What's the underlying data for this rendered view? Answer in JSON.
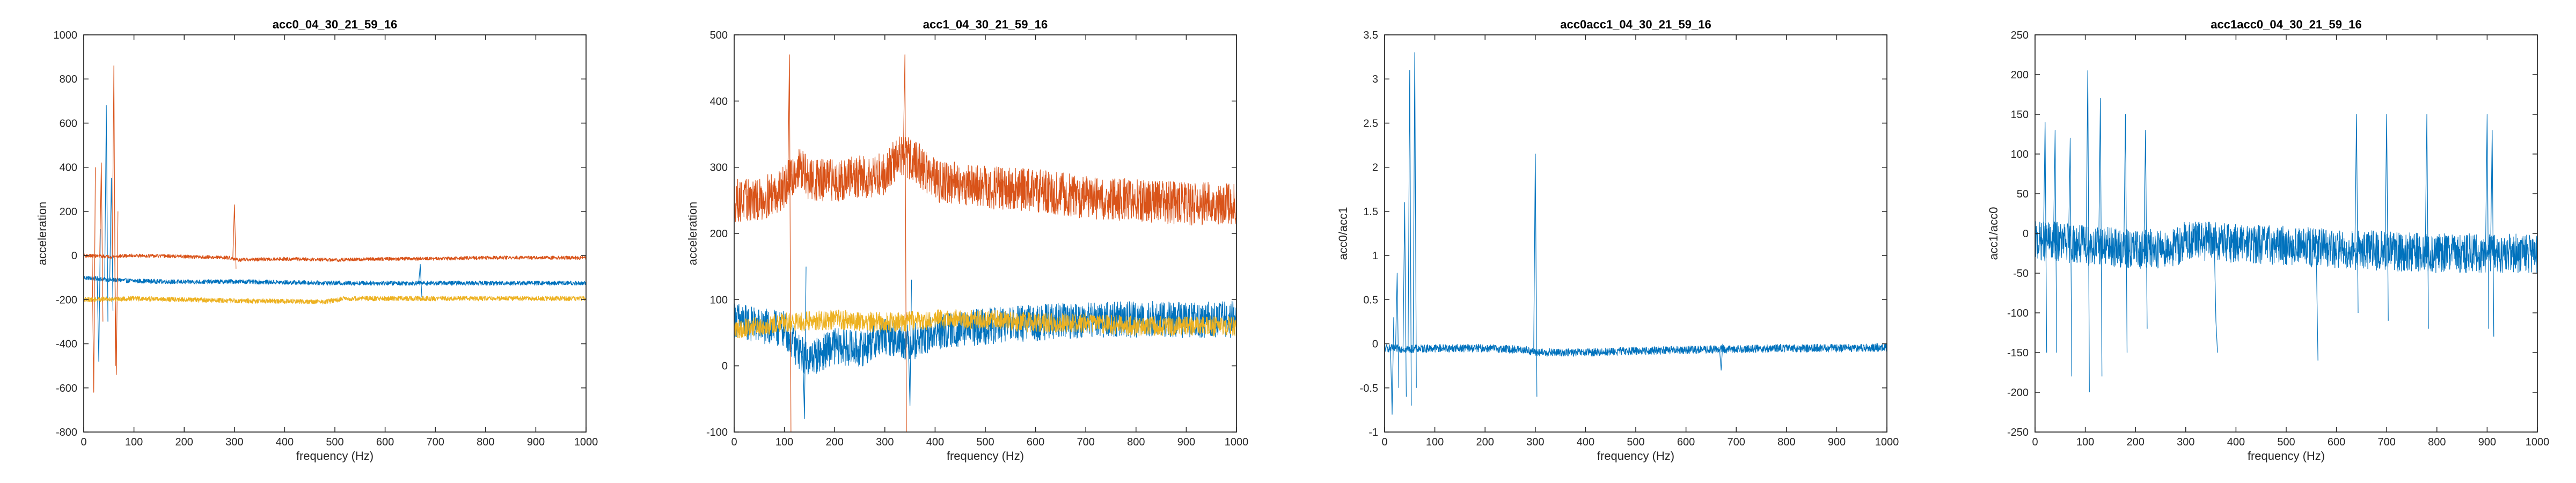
{
  "chart_data": [
    {
      "type": "line",
      "title": "acc0_04_30_21_59_16",
      "xlabel": "frequency (Hz)",
      "ylabel": "acceleration",
      "xlim": [
        0,
        1000
      ],
      "ylim": [
        -800,
        1000
      ],
      "xticks": [
        0,
        100,
        200,
        300,
        400,
        500,
        600,
        700,
        800,
        900,
        1000
      ],
      "yticks": [
        -800,
        -600,
        -400,
        -200,
        0,
        200,
        400,
        600,
        800,
        1000
      ],
      "grid": false,
      "series": [
        {
          "color": "#0072BD",
          "profile": [
            [
              0,
              -100
            ],
            [
              50,
              -110
            ],
            [
              100,
              -115
            ],
            [
              200,
              -120
            ],
            [
              300,
              -118
            ],
            [
              400,
              -122
            ],
            [
              500,
              -125
            ],
            [
              600,
              -125
            ],
            [
              700,
              -125
            ],
            [
              800,
              -125
            ],
            [
              900,
              -125
            ],
            [
              1000,
              -125
            ]
          ],
          "band": 20,
          "spikes": [
            [
              30,
              -480,
              120
            ],
            [
              45,
              680,
              -300
            ],
            [
              55,
              350,
              -250
            ],
            [
              670,
              -40,
              -190
            ]
          ]
        },
        {
          "color": "#D95319",
          "profile": [
            [
              0,
              0
            ],
            [
              50,
              -5
            ],
            [
              100,
              0
            ],
            [
              200,
              -5
            ],
            [
              290,
              -10
            ],
            [
              310,
              -20
            ],
            [
              400,
              -15
            ],
            [
              500,
              -20
            ],
            [
              600,
              -15
            ],
            [
              700,
              -15
            ],
            [
              800,
              -10
            ],
            [
              900,
              -10
            ],
            [
              1000,
              -10
            ]
          ],
          "band": 16,
          "spikes": [
            [
              20,
              -620,
              400
            ],
            [
              35,
              420,
              -300
            ],
            [
              60,
              860,
              -500
            ],
            [
              65,
              -540,
              200
            ],
            [
              300,
              230,
              -60
            ]
          ]
        },
        {
          "color": "#EDB120",
          "profile": [
            [
              0,
              -200
            ],
            [
              100,
              -195
            ],
            [
              200,
              -200
            ],
            [
              300,
              -205
            ],
            [
              480,
              -210
            ],
            [
              520,
              -195
            ],
            [
              700,
              -195
            ],
            [
              1000,
              -195
            ]
          ],
          "band": 22,
          "spikes": []
        }
      ]
    },
    {
      "type": "line",
      "title": "acc1_04_30_21_59_16",
      "xlabel": "frequency (Hz)",
      "ylabel": "acceleration",
      "xlim": [
        0,
        1000
      ],
      "ylim": [
        -100,
        500
      ],
      "xticks": [
        0,
        100,
        200,
        300,
        400,
        500,
        600,
        700,
        800,
        900,
        1000
      ],
      "yticks": [
        -100,
        0,
        100,
        200,
        300,
        400,
        500
      ],
      "grid": false,
      "series": [
        {
          "color": "#0072BD",
          "profile": [
            [
              0,
              70
            ],
            [
              50,
              60
            ],
            [
              100,
              55
            ],
            [
              130,
              20
            ],
            [
              150,
              10
            ],
            [
              200,
              30
            ],
            [
              250,
              25
            ],
            [
              300,
              45
            ],
            [
              350,
              35
            ],
            [
              400,
              50
            ],
            [
              500,
              60
            ],
            [
              600,
              65
            ],
            [
              700,
              70
            ],
            [
              800,
              70
            ],
            [
              900,
              70
            ],
            [
              1000,
              70
            ]
          ],
          "band": 55,
          "spikes": [
            [
              140,
              -80,
              150
            ],
            [
              350,
              -60,
              130
            ]
          ]
        },
        {
          "color": "#D95319",
          "profile": [
            [
              0,
              250
            ],
            [
              50,
              250
            ],
            [
              100,
              270
            ],
            [
              130,
              300
            ],
            [
              150,
              280
            ],
            [
              200,
              280
            ],
            [
              300,
              290
            ],
            [
              330,
              320
            ],
            [
              360,
              310
            ],
            [
              400,
              280
            ],
            [
              500,
              270
            ],
            [
              600,
              265
            ],
            [
              700,
              255
            ],
            [
              800,
              250
            ],
            [
              900,
              245
            ],
            [
              1000,
              245
            ]
          ],
          "band": 65,
          "spikes": [
            [
              110,
              470,
              -130
            ],
            [
              340,
              470,
              -140
            ]
          ]
        },
        {
          "color": "#EDB120",
          "profile": [
            [
              0,
              55
            ],
            [
              100,
              65
            ],
            [
              200,
              70
            ],
            [
              300,
              65
            ],
            [
              400,
              70
            ],
            [
              500,
              70
            ],
            [
              600,
              65
            ],
            [
              700,
              65
            ],
            [
              800,
              60
            ],
            [
              900,
              60
            ],
            [
              1000,
              60
            ]
          ],
          "band": 30,
          "spikes": []
        }
      ]
    },
    {
      "type": "line",
      "title": "acc0acc1_04_30_21_59_16",
      "xlabel": "frequency (Hz)",
      "ylabel": "acc0/acc1",
      "xlim": [
        0,
        1000
      ],
      "ylim": [
        -1,
        3.5
      ],
      "xticks": [
        0,
        100,
        200,
        300,
        400,
        500,
        600,
        700,
        800,
        900,
        1000
      ],
      "yticks": [
        -1,
        -0.5,
        0,
        0.5,
        1,
        1.5,
        2,
        2.5,
        3,
        3.5
      ],
      "grid": false,
      "series": [
        {
          "color": "#0072BD",
          "profile": [
            [
              0,
              -0.05
            ],
            [
              50,
              -0.06
            ],
            [
              100,
              -0.05
            ],
            [
              200,
              -0.05
            ],
            [
              280,
              -0.07
            ],
            [
              300,
              -0.1
            ],
            [
              400,
              -0.1
            ],
            [
              500,
              -0.08
            ],
            [
              600,
              -0.07
            ],
            [
              700,
              -0.06
            ],
            [
              800,
              -0.05
            ],
            [
              900,
              -0.05
            ],
            [
              1000,
              -0.04
            ]
          ],
          "band": 0.09,
          "spikes": [
            [
              15,
              -0.8,
              0.3
            ],
            [
              40,
              1.6,
              -0.6
            ],
            [
              50,
              3.1,
              -0.7
            ],
            [
              60,
              3.3,
              -0.5
            ],
            [
              25,
              0.8,
              -0.5
            ],
            [
              300,
              2.15,
              -0.6
            ],
            [
              670,
              -0.3,
              0
            ]
          ]
        }
      ]
    },
    {
      "type": "line",
      "title": "acc1acc0_04_30_21_59_16",
      "xlabel": "frequency (Hz)",
      "ylabel": "acc1/acc0",
      "xlim": [
        0,
        1000
      ],
      "ylim": [
        -250,
        250
      ],
      "xticks": [
        0,
        100,
        200,
        300,
        400,
        500,
        600,
        700,
        800,
        900,
        1000
      ],
      "yticks": [
        -250,
        -200,
        -150,
        -100,
        -50,
        0,
        50,
        100,
        150,
        200,
        250
      ],
      "grid": false,
      "series": [
        {
          "color": "#0072BD",
          "profile": [
            [
              0,
              -10
            ],
            [
              50,
              -10
            ],
            [
              100,
              -15
            ],
            [
              200,
              -20
            ],
            [
              280,
              -18
            ],
            [
              300,
              -8
            ],
            [
              400,
              -12
            ],
            [
              500,
              -15
            ],
            [
              600,
              -20
            ],
            [
              700,
              -22
            ],
            [
              800,
              -25
            ],
            [
              900,
              -25
            ],
            [
              1000,
              -25
            ]
          ],
          "band": 50,
          "spikes": [
            [
              20,
              140,
              -150
            ],
            [
              40,
              130,
              -150
            ],
            [
              70,
              120,
              -180
            ],
            [
              105,
              205,
              -200
            ],
            [
              130,
              170,
              -180
            ],
            [
              180,
              150,
              -150
            ],
            [
              220,
              130,
              -120
            ],
            [
              640,
              150,
              -100
            ],
            [
              700,
              150,
              -110
            ],
            [
              780,
              150,
              -120
            ],
            [
              900,
              150,
              -120
            ],
            [
              910,
              130,
              -130
            ],
            [
              360,
              -110,
              -150
            ],
            [
              560,
              -30,
              -160
            ]
          ]
        }
      ]
    }
  ]
}
